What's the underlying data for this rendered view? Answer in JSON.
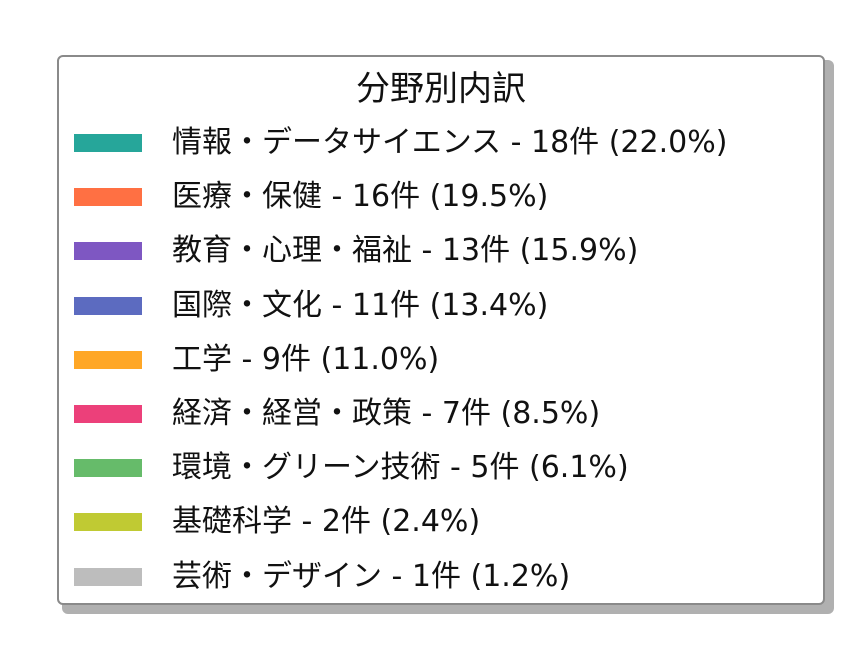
{
  "chart_data": {
    "type": "legend",
    "title": "分野別内訳",
    "series": [
      {
        "name": "情報・データサイエンス - 18件 (22.0%)",
        "category": "情報・データサイエンス",
        "value": 18,
        "percent": 22.0,
        "color": "#26a69a"
      },
      {
        "name": "医療・保健 - 16件 (19.5%)",
        "category": "医療・保健",
        "value": 16,
        "percent": 19.5,
        "color": "#ff7043"
      },
      {
        "name": "教育・心理・福祉 - 13件 (15.9%)",
        "category": "教育・心理・福祉",
        "value": 13,
        "percent": 15.9,
        "color": "#7e57c2"
      },
      {
        "name": "国際・文化 - 11件 (13.4%)",
        "category": "国際・文化",
        "value": 11,
        "percent": 13.4,
        "color": "#5c6bc0"
      },
      {
        "name": "工学 - 9件 (11.0%)",
        "category": "工学",
        "value": 9,
        "percent": 11.0,
        "color": "#ffa726"
      },
      {
        "name": "経済・経営・政策 - 7件 (8.5%)",
        "category": "経済・経営・政策",
        "value": 7,
        "percent": 8.5,
        "color": "#ec407a"
      },
      {
        "name": "環境・グリーン技術 - 5件 (6.1%)",
        "category": "環境・グリーン技術",
        "value": 5,
        "percent": 6.1,
        "color": "#66bb6a"
      },
      {
        "name": "基礎科学 - 2件 (2.4%)",
        "category": "基礎科学",
        "value": 2,
        "percent": 2.4,
        "color": "#c0ca33"
      },
      {
        "name": "芸術・デザイン - 1件 (1.2%)",
        "category": "芸術・デザイン",
        "value": 1,
        "percent": 1.2,
        "color": "#bdbdbd"
      }
    ]
  }
}
